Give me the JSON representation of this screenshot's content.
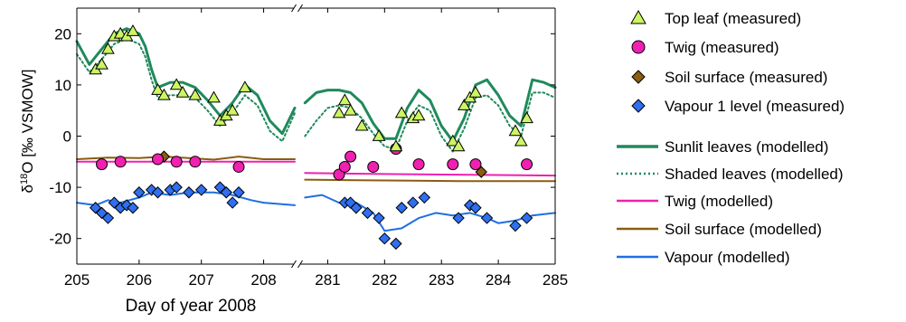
{
  "chart_data": {
    "type": "scatter",
    "xlabel": "Day of year 2008",
    "ylabel": "δ18O [‰ VSMOW]",
    "ylabel_parts": {
      "delta": "δ",
      "sup": "18",
      "rest": "O [‰ VSMOW]"
    },
    "ylim": [
      -25,
      25
    ],
    "yticks": [
      -20,
      -10,
      0,
      10,
      20
    ],
    "grid": false,
    "legend_position": "right",
    "axis_break": true,
    "panels": [
      {
        "xlim": [
          205,
          208.5
        ],
        "xticks": [
          205,
          206,
          207,
          208
        ]
      },
      {
        "xlim": [
          280.5,
          285
        ],
        "xticks": [
          281,
          282,
          283,
          284,
          285
        ]
      }
    ],
    "measured": [
      {
        "name": "Top leaf (measured)",
        "marker": "triangle",
        "color": "#ccf564",
        "x": [
          205.3,
          205.4,
          205.5,
          205.6,
          205.7,
          205.8,
          205.9,
          206.3,
          206.4,
          206.6,
          206.7,
          206.9,
          207.2,
          207.3,
          207.4,
          207.5,
          207.7,
          281.2,
          281.3,
          281.4,
          281.6,
          281.9,
          282.2,
          282.3,
          282.5,
          282.6,
          283.2,
          283.3,
          283.4,
          283.5,
          283.6,
          284.3,
          284.4,
          284.5
        ],
        "y": [
          13,
          14,
          17,
          19.5,
          20,
          19.5,
          20.5,
          9,
          8,
          10,
          8.5,
          8,
          7.5,
          3,
          4,
          5,
          9.5,
          4.5,
          7,
          5,
          2,
          0,
          -2,
          4.5,
          3.5,
          4,
          -1,
          -2,
          6,
          7.5,
          8.5,
          1,
          -1,
          3.5
        ]
      },
      {
        "name": "Twig (measured)",
        "marker": "circle",
        "color": "#f020b0",
        "x": [
          205.4,
          205.7,
          206.3,
          206.6,
          206.9,
          207.6,
          281.2,
          281.3,
          281.4,
          281.8,
          282.2,
          282.6,
          283.2,
          283.6,
          284.5
        ],
        "y": [
          -5.5,
          -5,
          -4.5,
          -5,
          -5,
          -6,
          -7.5,
          -6,
          -4,
          -6,
          -2.5,
          -5.5,
          -5.5,
          -5.5,
          -5.5
        ]
      },
      {
        "name": "Soil surface (measured)",
        "marker": "diamond",
        "color": "#8a5d10",
        "x": [
          206.4,
          283.7
        ],
        "y": [
          -4,
          -7
        ]
      },
      {
        "name": "Vapour 1 level (measured)",
        "marker": "diamond",
        "color": "#2f6ff0",
        "x": [
          205.3,
          205.4,
          205.5,
          205.6,
          205.7,
          205.8,
          205.9,
          206.0,
          206.2,
          206.3,
          206.5,
          206.6,
          206.8,
          207.0,
          207.3,
          207.4,
          207.5,
          207.6,
          281.3,
          281.4,
          281.5,
          281.7,
          281.9,
          282.0,
          282.2,
          282.3,
          282.5,
          282.7,
          283.3,
          283.5,
          283.6,
          283.8,
          284.3,
          284.5
        ],
        "y": [
          -14,
          -15,
          -16,
          -13,
          -14,
          -13.5,
          -14,
          -11,
          -10.5,
          -11,
          -10.5,
          -10,
          -11,
          -10.5,
          -10,
          -11,
          -13,
          -11,
          -13,
          -13,
          -14,
          -15,
          -16,
          -20,
          -21,
          -14,
          -13,
          -12,
          -16,
          -13.5,
          -14,
          -16,
          -17.5,
          -16
        ]
      }
    ],
    "modelled": [
      {
        "name": "Sunlit leaves (modelled)",
        "style": "solid",
        "color": "#1f8a5c",
        "width": 3,
        "x": [
          205.0,
          205.2,
          205.4,
          205.6,
          205.8,
          206.0,
          206.1,
          206.2,
          206.3,
          206.5,
          206.7,
          206.9,
          207.1,
          207.3,
          207.5,
          207.7,
          207.9,
          208.1,
          208.3,
          208.5,
          280.6,
          280.8,
          281.0,
          281.2,
          281.4,
          281.6,
          281.8,
          282.0,
          282.2,
          282.4,
          282.6,
          282.8,
          283.0,
          283.2,
          283.4,
          283.6,
          283.8,
          284.0,
          284.2,
          284.4,
          284.6,
          284.8,
          285.0
        ],
        "y": [
          18.5,
          14,
          17,
          20,
          21,
          20,
          17.5,
          13,
          9.5,
          10.5,
          10.5,
          9.5,
          7,
          4,
          6.5,
          10,
          8,
          3,
          0.5,
          5.5,
          6.5,
          8.5,
          9,
          9,
          8.5,
          6.5,
          2.5,
          -0.5,
          -0.5,
          5.5,
          9,
          7,
          2,
          -1,
          3.5,
          10,
          11,
          8,
          4,
          2,
          11,
          10.5,
          9.5
        ]
      },
      {
        "name": "Shaded leaves (modelled)",
        "style": "dotted",
        "color": "#1f8a5c",
        "width": 2,
        "x": [
          205.0,
          205.2,
          205.4,
          205.6,
          205.8,
          206.0,
          206.1,
          206.2,
          206.3,
          206.5,
          206.7,
          206.9,
          207.1,
          207.3,
          207.5,
          207.7,
          207.9,
          208.1,
          208.3,
          208.5,
          280.6,
          280.8,
          281.0,
          281.2,
          281.4,
          281.6,
          281.8,
          282.0,
          282.2,
          282.4,
          282.6,
          282.8,
          283.0,
          283.2,
          283.4,
          283.6,
          283.8,
          284.0,
          284.2,
          284.4,
          284.6,
          284.8,
          285.0
        ],
        "y": [
          16,
          12.5,
          15,
          18,
          19,
          18,
          15.5,
          11,
          7.5,
          8,
          8,
          7.5,
          5,
          2,
          4.5,
          8,
          6,
          1,
          -1,
          4.5,
          0,
          3,
          5.5,
          6,
          5.5,
          3.5,
          0.5,
          -2,
          -2.5,
          3,
          6,
          5,
          0,
          -3,
          1.5,
          7.5,
          8,
          6,
          2,
          0,
          8.5,
          8.5,
          7.5
        ]
      },
      {
        "name": "Twig (modelled)",
        "style": "solid",
        "color": "#f020b0",
        "width": 2,
        "x": [
          205.0,
          206.0,
          207.0,
          208.5,
          280.6,
          282.0,
          283.0,
          284.0,
          285.0
        ],
        "y": [
          -5,
          -5,
          -5,
          -5,
          -7.2,
          -7.4,
          -7.5,
          -7.6,
          -7.7
        ]
      },
      {
        "name": "Soil surface (modelled)",
        "style": "solid",
        "color": "#8a5d10",
        "width": 2,
        "x": [
          205.0,
          205.5,
          206.0,
          206.4,
          206.8,
          207.2,
          207.6,
          208.0,
          208.5,
          280.6,
          281.5,
          282.5,
          283.5,
          284.5,
          285.0
        ],
        "y": [
          -4.5,
          -4.2,
          -4.3,
          -4.0,
          -4.3,
          -4.6,
          -4.0,
          -4.5,
          -4.5,
          -8.5,
          -8.6,
          -8.7,
          -8.8,
          -8.8,
          -8.8
        ]
      },
      {
        "name": "Vapour (modelled)",
        "style": "solid",
        "color": "#1f6fe0",
        "width": 2,
        "x": [
          205.0,
          205.3,
          205.5,
          205.7,
          206.0,
          206.2,
          206.5,
          206.8,
          207.0,
          207.2,
          207.5,
          207.8,
          208.0,
          208.5,
          280.6,
          280.9,
          281.2,
          281.5,
          281.8,
          282.0,
          282.3,
          282.6,
          282.9,
          283.2,
          283.5,
          283.8,
          284.0,
          284.3,
          284.6,
          285.0
        ],
        "y": [
          -13,
          -13.5,
          -12.5,
          -13,
          -12,
          -11,
          -11.5,
          -11,
          -11,
          -11,
          -11.5,
          -12.5,
          -13,
          -13.5,
          -12,
          -11.5,
          -13,
          -13,
          -15,
          -18.5,
          -18,
          -16,
          -15,
          -15.5,
          -15,
          -16,
          -17,
          -16.5,
          -15.5,
          -15
        ]
      }
    ]
  }
}
